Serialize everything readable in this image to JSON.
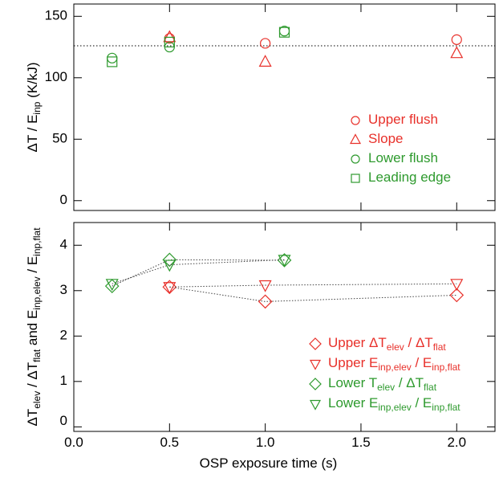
{
  "chart_data": [
    {
      "type": "scatter",
      "ylabel": "ΔT / E_{inp} (K/kJ)",
      "xlim": [
        0,
        2.2
      ],
      "ylim": [
        -8,
        160
      ],
      "xticks": [
        {
          "value": 0,
          "label": "0.0"
        },
        0.5,
        {
          "value": 1,
          "label": "1.0"
        },
        1.5,
        {
          "value": 2,
          "label": "2.0"
        }
      ],
      "yticks": [
        0,
        50,
        100,
        150
      ],
      "xticklabels": false,
      "hline": 126,
      "lines": false,
      "legend": "lower right",
      "series": [
        {
          "name": "Upper flush",
          "color": "#e8302a",
          "marker": "circle",
          "x": [
            0.5,
            1.0,
            2.0
          ],
          "values": [
            132,
            128,
            131
          ]
        },
        {
          "name": "Slope",
          "color": "#e8302a",
          "marker": "triangle-up",
          "x": [
            0.5,
            1.0,
            2.0
          ],
          "values": [
            133,
            113,
            120
          ]
        },
        {
          "name": "Lower flush",
          "color": "#2e9a2e",
          "marker": "circle",
          "x": [
            0.2,
            0.5,
            1.1
          ],
          "values": [
            116,
            125,
            138
          ]
        },
        {
          "name": "Leading edge",
          "color": "#2e9a2e",
          "marker": "square",
          "x": [
            0.2,
            0.5,
            1.1
          ],
          "values": [
            113,
            129,
            137
          ]
        }
      ]
    },
    {
      "type": "scatter",
      "ylabel": "ΔT_{elev} / ΔT_{flat} and E_{inp,elev} / E_{inp,flat}",
      "xlabel": "OSP exposure time (s)",
      "xlim": [
        0,
        2.2
      ],
      "ylim": [
        -0.1,
        4.5
      ],
      "xticks": [
        {
          "value": 0,
          "label": "0.0"
        },
        0.5,
        {
          "value": 1,
          "label": "1.0"
        },
        1.5,
        {
          "value": 2,
          "label": "2.0"
        }
      ],
      "yticks": [
        0,
        1,
        2,
        3,
        4
      ],
      "xticklabels": true,
      "lines": true,
      "legend": "lower right",
      "series": [
        {
          "name": "Upper ΔT_{elev} / ΔT_{flat}",
          "color": "#e8302a",
          "marker": "diamond",
          "x": [
            0.5,
            1.0,
            2.0
          ],
          "values": [
            3.08,
            2.76,
            2.9
          ]
        },
        {
          "name": "Upper E_{inp,elev} / E_{inp,flat}",
          "color": "#e8302a",
          "marker": "triangle-down",
          "x": [
            0.5,
            1.0,
            2.0
          ],
          "values": [
            3.08,
            3.12,
            3.15
          ]
        },
        {
          "name": "Lower T_{elev} / ΔT_{flat}",
          "color": "#2e9a2e",
          "marker": "diamond",
          "x": [
            0.2,
            0.5,
            1.1
          ],
          "values": [
            3.1,
            3.68,
            3.67
          ]
        },
        {
          "name": "Lower E_{inp,elev} / E_{inp,flat}",
          "color": "#2e9a2e",
          "marker": "triangle-down",
          "x": [
            0.2,
            0.5,
            1.1
          ],
          "values": [
            3.15,
            3.57,
            3.68
          ]
        }
      ]
    }
  ]
}
